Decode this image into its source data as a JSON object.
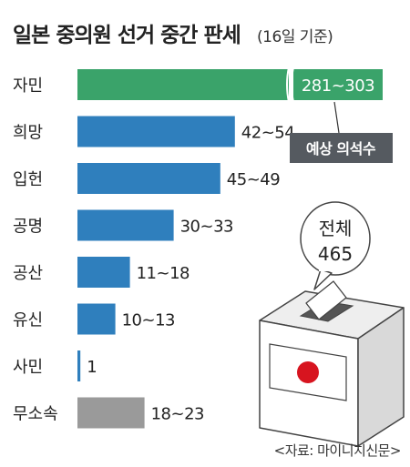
{
  "header": {
    "title": "일본 중의원 선거 중간 판세",
    "subtitle": "(16일 기준)"
  },
  "legend_tag": "예상 의석수",
  "total_bubble": {
    "label": "전체",
    "value": "465"
  },
  "source": "<자료: 마이니치신문>",
  "colors": {
    "ldp": "#3aa36a",
    "blue": "#2f7fbd",
    "gray": "#9a9a9a",
    "tag_bg": "#555a60",
    "flag_red": "#d7141f"
  },
  "icons": [
    "ballot-box-icon",
    "japan-flag-icon"
  ],
  "chart_data": {
    "type": "bar",
    "orientation": "horizontal",
    "title": "일본 중의원 선거 중간 판세",
    "subtitle": "(16일 기준)",
    "xlabel": "",
    "ylabel": "",
    "categories": [
      "자민",
      "희망",
      "입헌",
      "공명",
      "공산",
      "유신",
      "사민",
      "무소속"
    ],
    "ranges": [
      [
        281,
        303
      ],
      [
        42,
        54
      ],
      [
        45,
        49
      ],
      [
        30,
        33
      ],
      [
        11,
        18
      ],
      [
        10,
        13
      ],
      [
        1,
        1
      ],
      [
        18,
        23
      ]
    ],
    "value_labels": [
      "281~303",
      "42~54",
      "45~49",
      "30~33",
      "11~18",
      "10~13",
      "1",
      "18~23"
    ],
    "bar_colors": [
      "#3aa36a",
      "#2f7fbd",
      "#2f7fbd",
      "#2f7fbd",
      "#2f7fbd",
      "#2f7fbd",
      "#2f7fbd",
      "#9a9a9a"
    ],
    "axis_break": true,
    "total_seats": 465,
    "grid": false
  }
}
